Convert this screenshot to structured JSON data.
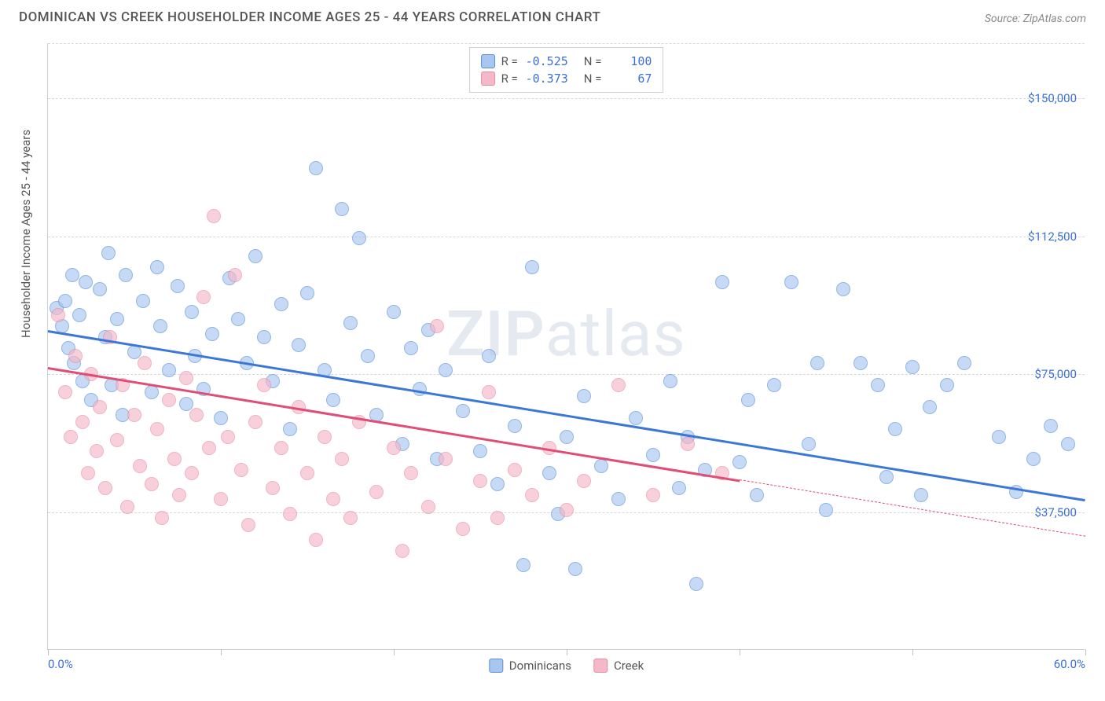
{
  "header": {
    "title": "DOMINICAN VS CREEK HOUSEHOLDER INCOME AGES 25 - 44 YEARS CORRELATION CHART",
    "source_label": "Source: ",
    "source_name": "ZipAtlas.com"
  },
  "chart": {
    "type": "scatter",
    "ylabel": "Householder Income Ages 25 - 44 years",
    "xlim": [
      0,
      60
    ],
    "ylim": [
      0,
      165000
    ],
    "x_tick_positions_pct": [
      0,
      10,
      20,
      30,
      40,
      50,
      60
    ],
    "x_tick_labels": {
      "first": "0.0%",
      "last": "60.0%"
    },
    "y_gridlines": [
      37500,
      75000,
      112500,
      150000,
      165000
    ],
    "y_tick_labels": [
      "$37,500",
      "$75,000",
      "$112,500",
      "$150,000",
      ""
    ],
    "background_color": "#ffffff",
    "grid_color": "#d8d8d8",
    "axis_color": "#d0d0d0",
    "tick_label_color": "#3b6fd6",
    "watermark": {
      "bold": "ZIP",
      "rest": "atlas"
    },
    "series": [
      {
        "name": "Dominicans",
        "fill": "#a8c6f0",
        "stroke": "#5a8fd8",
        "line_color": "#3b78d6",
        "r": "-0.525",
        "n": "100",
        "trend": {
          "x1": 0,
          "y1": 87000,
          "x2": 60,
          "y2": 41000
        },
        "dash_from_x": null,
        "points": [
          [
            0.5,
            93000
          ],
          [
            0.8,
            88000
          ],
          [
            1,
            95000
          ],
          [
            1.2,
            82000
          ],
          [
            1.4,
            102000
          ],
          [
            1.5,
            78000
          ],
          [
            1.8,
            91000
          ],
          [
            2,
            73000
          ],
          [
            2.2,
            100000
          ],
          [
            2.5,
            68000
          ],
          [
            3,
            98000
          ],
          [
            3.3,
            85000
          ],
          [
            3.5,
            108000
          ],
          [
            3.7,
            72000
          ],
          [
            4,
            90000
          ],
          [
            4.3,
            64000
          ],
          [
            4.5,
            102000
          ],
          [
            5,
            81000
          ],
          [
            5.5,
            95000
          ],
          [
            6,
            70000
          ],
          [
            6.3,
            104000
          ],
          [
            6.5,
            88000
          ],
          [
            7,
            76000
          ],
          [
            7.5,
            99000
          ],
          [
            8,
            67000
          ],
          [
            8.3,
            92000
          ],
          [
            8.5,
            80000
          ],
          [
            9,
            71000
          ],
          [
            9.5,
            86000
          ],
          [
            10,
            63000
          ],
          [
            10.5,
            101000
          ],
          [
            11,
            90000
          ],
          [
            11.5,
            78000
          ],
          [
            12,
            107000
          ],
          [
            12.5,
            85000
          ],
          [
            13,
            73000
          ],
          [
            13.5,
            94000
          ],
          [
            14,
            60000
          ],
          [
            14.5,
            83000
          ],
          [
            15,
            97000
          ],
          [
            15.5,
            131000
          ],
          [
            16,
            76000
          ],
          [
            16.5,
            68000
          ],
          [
            17,
            120000
          ],
          [
            17.5,
            89000
          ],
          [
            18,
            112000
          ],
          [
            18.5,
            80000
          ],
          [
            19,
            64000
          ],
          [
            20,
            92000
          ],
          [
            20.5,
            56000
          ],
          [
            21,
            82000
          ],
          [
            21.5,
            71000
          ],
          [
            22,
            87000
          ],
          [
            22.5,
            52000
          ],
          [
            23,
            76000
          ],
          [
            24,
            65000
          ],
          [
            25,
            54000
          ],
          [
            25.5,
            80000
          ],
          [
            26,
            45000
          ],
          [
            27,
            61000
          ],
          [
            27.5,
            23000
          ],
          [
            28,
            104000
          ],
          [
            29,
            48000
          ],
          [
            29.5,
            37000
          ],
          [
            30,
            58000
          ],
          [
            30.5,
            22000
          ],
          [
            31,
            69000
          ],
          [
            32,
            50000
          ],
          [
            33,
            41000
          ],
          [
            34,
            63000
          ],
          [
            35,
            53000
          ],
          [
            36,
            73000
          ],
          [
            36.5,
            44000
          ],
          [
            37,
            58000
          ],
          [
            37.5,
            18000
          ],
          [
            38,
            49000
          ],
          [
            39,
            100000
          ],
          [
            40,
            51000
          ],
          [
            40.5,
            68000
          ],
          [
            41,
            42000
          ],
          [
            42,
            72000
          ],
          [
            43,
            100000
          ],
          [
            44,
            56000
          ],
          [
            44.5,
            78000
          ],
          [
            45,
            38000
          ],
          [
            46,
            98000
          ],
          [
            47,
            78000
          ],
          [
            48,
            72000
          ],
          [
            48.5,
            47000
          ],
          [
            49,
            60000
          ],
          [
            50,
            77000
          ],
          [
            50.5,
            42000
          ],
          [
            51,
            66000
          ],
          [
            52,
            72000
          ],
          [
            53,
            78000
          ],
          [
            55,
            58000
          ],
          [
            56,
            43000
          ],
          [
            57,
            52000
          ],
          [
            58,
            61000
          ],
          [
            59,
            56000
          ]
        ]
      },
      {
        "name": "Creek",
        "fill": "#f5b8c8",
        "stroke": "#e88ba5",
        "line_color": "#e04d76",
        "r": "-0.373",
        "n": "67",
        "trend": {
          "x1": 0,
          "y1": 77000,
          "x2": 60,
          "y2": 31000
        },
        "dash_from_x": 40,
        "points": [
          [
            0.6,
            91000
          ],
          [
            1,
            70000
          ],
          [
            1.3,
            58000
          ],
          [
            1.6,
            80000
          ],
          [
            2,
            62000
          ],
          [
            2.3,
            48000
          ],
          [
            2.5,
            75000
          ],
          [
            2.8,
            54000
          ],
          [
            3,
            66000
          ],
          [
            3.3,
            44000
          ],
          [
            3.6,
            85000
          ],
          [
            4,
            57000
          ],
          [
            4.3,
            72000
          ],
          [
            4.6,
            39000
          ],
          [
            5,
            64000
          ],
          [
            5.3,
            50000
          ],
          [
            5.6,
            78000
          ],
          [
            6,
            45000
          ],
          [
            6.3,
            60000
          ],
          [
            6.6,
            36000
          ],
          [
            7,
            68000
          ],
          [
            7.3,
            52000
          ],
          [
            7.6,
            42000
          ],
          [
            8,
            74000
          ],
          [
            8.3,
            48000
          ],
          [
            8.6,
            64000
          ],
          [
            9,
            96000
          ],
          [
            9.3,
            55000
          ],
          [
            9.6,
            118000
          ],
          [
            10,
            41000
          ],
          [
            10.4,
            58000
          ],
          [
            10.8,
            102000
          ],
          [
            11.2,
            49000
          ],
          [
            11.6,
            34000
          ],
          [
            12,
            62000
          ],
          [
            12.5,
            72000
          ],
          [
            13,
            44000
          ],
          [
            13.5,
            55000
          ],
          [
            14,
            37000
          ],
          [
            14.5,
            66000
          ],
          [
            15,
            48000
          ],
          [
            15.5,
            30000
          ],
          [
            16,
            58000
          ],
          [
            16.5,
            41000
          ],
          [
            17,
            52000
          ],
          [
            17.5,
            36000
          ],
          [
            18,
            62000
          ],
          [
            19,
            43000
          ],
          [
            20,
            55000
          ],
          [
            20.5,
            27000
          ],
          [
            21,
            48000
          ],
          [
            22,
            39000
          ],
          [
            22.5,
            88000
          ],
          [
            23,
            52000
          ],
          [
            24,
            33000
          ],
          [
            25,
            46000
          ],
          [
            25.5,
            70000
          ],
          [
            26,
            36000
          ],
          [
            27,
            49000
          ],
          [
            28,
            42000
          ],
          [
            29,
            55000
          ],
          [
            30,
            38000
          ],
          [
            31,
            46000
          ],
          [
            33,
            72000
          ],
          [
            35,
            42000
          ],
          [
            37,
            56000
          ],
          [
            39,
            48000
          ]
        ]
      }
    ],
    "legend_bottom": [
      "Dominicans",
      "Creek"
    ]
  }
}
